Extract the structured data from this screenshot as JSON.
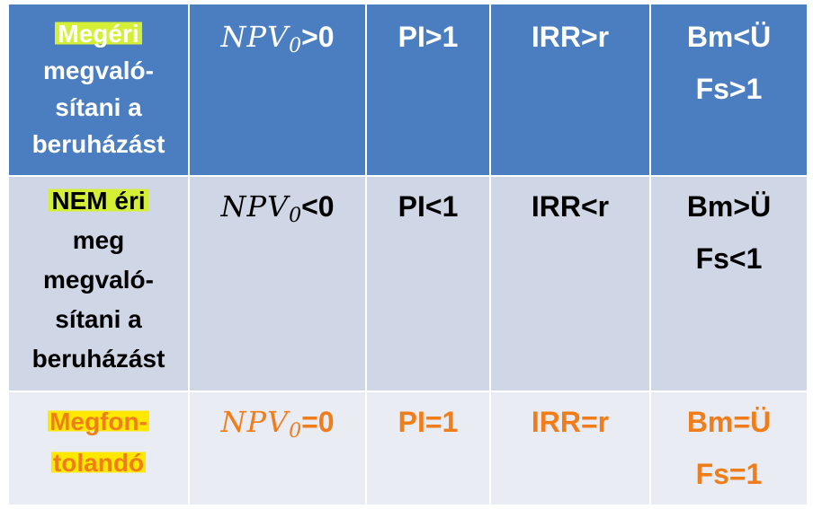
{
  "table": {
    "rows": [
      {
        "label_lines": [
          "Megéri",
          "megvaló-",
          "sítani a",
          "beruházást"
        ],
        "npv_symbol": "NPV",
        "npv_subscript": "0",
        "npv_comparison": ">0",
        "pi": "PI>1",
        "irr": "IRR>r",
        "bm_lines": [
          "Bm<Ü",
          "Fs>1"
        ]
      },
      {
        "label_lines": [
          "NEM éri",
          "meg",
          "megvaló-",
          "sítani a",
          "beruházást"
        ],
        "npv_symbol": "NPV",
        "npv_subscript": "0",
        "npv_comparison": "<0",
        "pi": "PI<1",
        "irr": "IRR<r",
        "bm_lines": [
          "Bm>Ü",
          "Fs<1"
        ]
      },
      {
        "label_lines": [
          "Megfon-",
          "tolandó"
        ],
        "npv_symbol": "NPV",
        "npv_subscript": "0",
        "npv_comparison": "=0",
        "pi": "PI=1",
        "irr": "IRR=r",
        "bm_lines": [
          "Bm=Ü",
          "Fs=1"
        ]
      }
    ]
  },
  "colors": {
    "header_blue": "#4b7dc1",
    "row_gray": "#cfd6e6",
    "row_light": "#e9ecf3",
    "orange_text": "#f07d1a",
    "highlight_green": "#d4ef36",
    "highlight_yellow": "#ffe800"
  }
}
